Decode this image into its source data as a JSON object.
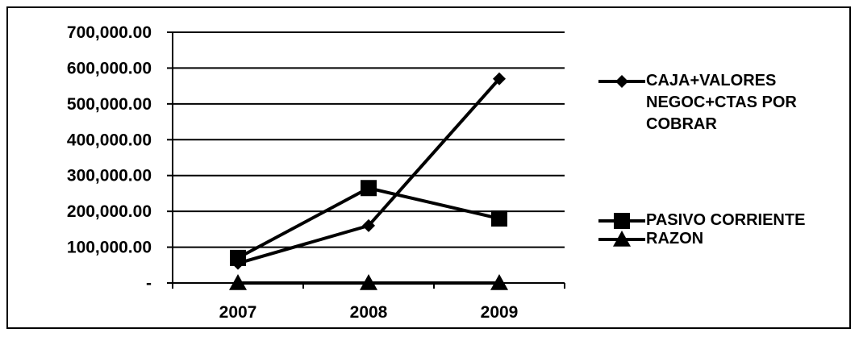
{
  "chart_data": {
    "type": "line",
    "title": "",
    "xlabel": "",
    "ylabel": "",
    "categories": [
      "2007",
      "2008",
      "2009"
    ],
    "ylim": [
      0,
      700000
    ],
    "yticks": [
      0,
      100000,
      200000,
      300000,
      400000,
      500000,
      600000,
      700000
    ],
    "ytick_labels": [
      "-",
      "100,000.00",
      "200,000.00",
      "300,000.00",
      "400,000.00",
      "500,000.00",
      "600,000.00",
      "700,000.00"
    ],
    "grid": true,
    "legend_position": "right",
    "series": [
      {
        "name": "CAJA+VALORES NEGOC+CTAS POR COBRAR",
        "marker": "diamond",
        "values": [
          55000,
          160000,
          570000
        ]
      },
      {
        "name": "PASIVO CORRIENTE",
        "marker": "square",
        "values": [
          70000,
          265000,
          180000
        ]
      },
      {
        "name": "RAZON",
        "marker": "triangle",
        "values": [
          0,
          0,
          0
        ]
      }
    ],
    "line_color": "#000000"
  }
}
